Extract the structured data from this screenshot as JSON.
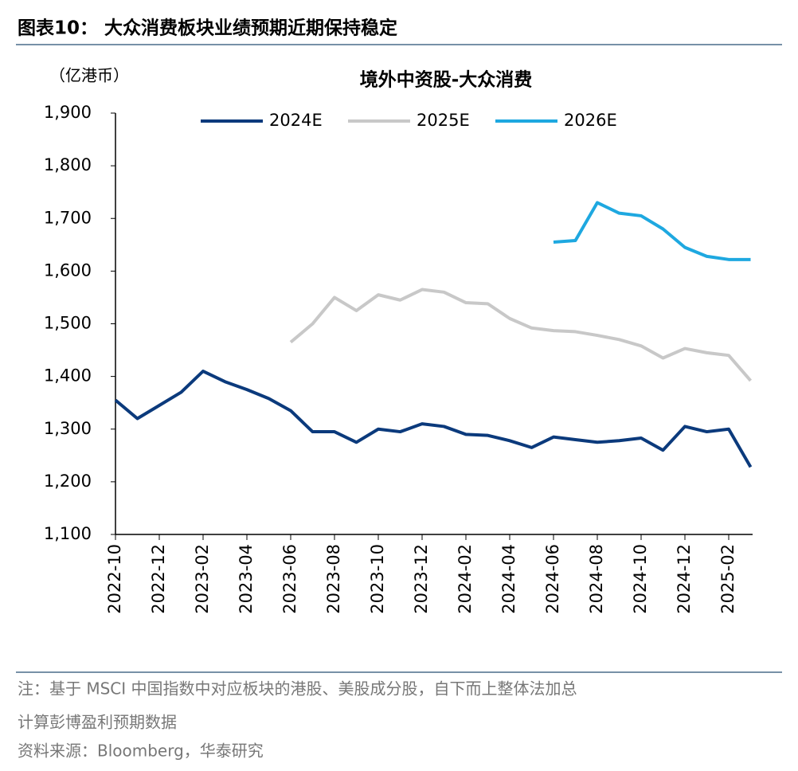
{
  "header": {
    "title": "图表10：  大众消费板块业绩预期近期保持稳定"
  },
  "chart_data": {
    "type": "line",
    "title": "境外中资股-大众消费",
    "y_label": "（亿港币）",
    "categories": [
      "2022-10",
      null,
      "2022-12",
      null,
      "2023-02",
      null,
      "2023-04",
      null,
      "2023-06",
      null,
      "2023-08",
      null,
      "2023-10",
      null,
      "2023-12",
      null,
      "2024-02",
      null,
      "2024-04",
      null,
      "2024-06",
      null,
      "2024-08",
      null,
      "2024-10",
      null,
      "2024-12",
      null,
      "2025-02",
      null
    ],
    "series": [
      {
        "name": "2024E",
        "color": "#0b3a7c",
        "values": [
          1355,
          1320,
          1345,
          1370,
          1410,
          1390,
          1375,
          1358,
          1335,
          1295,
          1295,
          1275,
          1300,
          1295,
          1310,
          1305,
          1290,
          1288,
          1278,
          1265,
          1285,
          1280,
          1275,
          1278,
          1283,
          1260,
          1305,
          1295,
          1300,
          1228
        ]
      },
      {
        "name": "2025E",
        "color": "#c8c8c8",
        "values": [
          null,
          null,
          null,
          null,
          null,
          null,
          null,
          null,
          1465,
          1500,
          1550,
          1525,
          1555,
          1545,
          1565,
          1560,
          1540,
          1538,
          1510,
          1492,
          1487,
          1485,
          1478,
          1470,
          1458,
          1435,
          1453,
          1445,
          1440,
          1392
        ]
      },
      {
        "name": "2026E",
        "color": "#1ea8e0",
        "values": [
          null,
          null,
          null,
          null,
          null,
          null,
          null,
          null,
          null,
          null,
          null,
          null,
          null,
          null,
          null,
          null,
          null,
          null,
          null,
          null,
          1655,
          1658,
          1730,
          1710,
          1705,
          1680,
          1645,
          1628,
          1622,
          1622
        ]
      }
    ],
    "ylim": [
      1100,
      1900
    ],
    "yticks": [
      {
        "value": 1100,
        "label": "1,100"
      },
      {
        "value": 1200,
        "label": "1,200"
      },
      {
        "value": 1300,
        "label": "1,300"
      },
      {
        "value": 1400,
        "label": "1,400"
      },
      {
        "value": 1500,
        "label": "1,500"
      },
      {
        "value": 1600,
        "label": "1,600"
      },
      {
        "value": 1700,
        "label": "1,700"
      },
      {
        "value": 1800,
        "label": "1,800"
      },
      {
        "value": 1900,
        "label": "1,900"
      }
    ],
    "legend": "top"
  },
  "footer": {
    "note_line1": "注：基于 MSCI 中国指数中对应板块的港股、美股成分股，自下而上整体法加总",
    "note_line2": "计算彭博盈利预期数据",
    "source": "资料来源：Bloomberg，华泰研究"
  }
}
